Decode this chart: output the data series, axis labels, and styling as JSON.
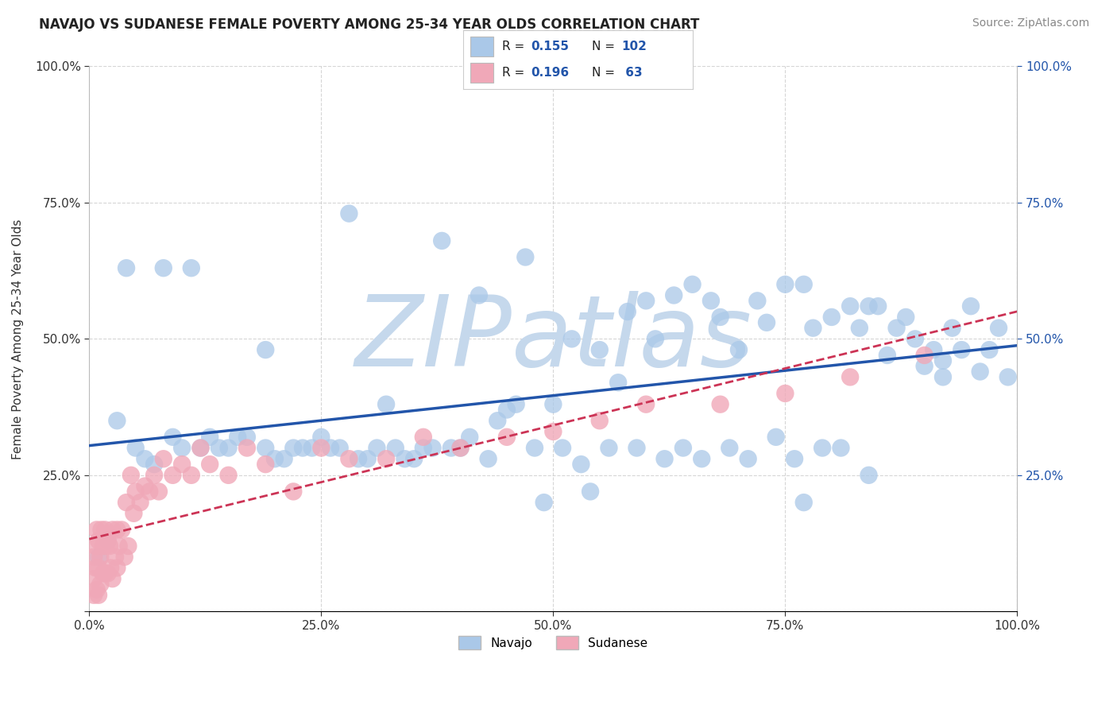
{
  "title": "NAVAJO VS SUDANESE FEMALE POVERTY AMONG 25-34 YEAR OLDS CORRELATION CHART",
  "source": "Source: ZipAtlas.com",
  "ylabel": "Female Poverty Among 25-34 Year Olds",
  "xlim": [
    0,
    1
  ],
  "ylim": [
    0,
    1
  ],
  "xticks": [
    0.0,
    0.25,
    0.5,
    0.75,
    1.0
  ],
  "yticks": [
    0.0,
    0.25,
    0.5,
    0.75,
    1.0
  ],
  "xticklabels": [
    "0.0%",
    "25.0%",
    "50.0%",
    "75.0%",
    "100.0%"
  ],
  "yticklabels": [
    "",
    "25.0%",
    "50.0%",
    "75.0%",
    "100.0%"
  ],
  "navajo_color": "#aac8e8",
  "sudanese_color": "#f0a8b8",
  "navajo_trend_color": "#2255aa",
  "sudanese_trend_color": "#cc3355",
  "background_color": "#ffffff",
  "grid_color": "#cccccc",
  "watermark": "ZIPatlas",
  "watermark_color": "#c5d8ec",
  "legend_navajo": "Navajo",
  "legend_sudanese": "Sudanese",
  "R_N_color": "#2255aa",
  "navajo_R_str": "0.155",
  "navajo_N_str": "102",
  "sudanese_R_str": "0.196",
  "sudanese_N_str": " 63",
  "navajo_x": [
    0.04,
    0.08,
    0.11,
    0.28,
    0.38,
    0.42,
    0.47,
    0.52,
    0.55,
    0.58,
    0.6,
    0.63,
    0.65,
    0.67,
    0.68,
    0.7,
    0.72,
    0.73,
    0.75,
    0.77,
    0.78,
    0.8,
    0.82,
    0.83,
    0.84,
    0.85,
    0.86,
    0.87,
    0.88,
    0.89,
    0.9,
    0.91,
    0.92,
    0.93,
    0.94,
    0.95,
    0.96,
    0.97,
    0.98,
    0.99,
    0.03,
    0.05,
    0.07,
    0.09,
    0.1,
    0.13,
    0.15,
    0.17,
    0.19,
    0.21,
    0.23,
    0.25,
    0.27,
    0.29,
    0.31,
    0.33,
    0.35,
    0.37,
    0.39,
    0.41,
    0.43,
    0.45,
    0.48,
    0.5,
    0.53,
    0.56,
    0.59,
    0.62,
    0.64,
    0.66,
    0.69,
    0.71,
    0.74,
    0.76,
    0.79,
    0.81,
    0.57,
    0.61,
    0.19,
    0.22,
    0.32,
    0.46,
    0.49,
    0.54,
    0.01,
    0.02,
    0.16,
    0.06,
    0.12,
    0.14,
    0.2,
    0.24,
    0.26,
    0.3,
    0.34,
    0.36,
    0.4,
    0.44,
    0.51,
    0.77,
    0.84,
    0.92
  ],
  "navajo_y": [
    0.63,
    0.63,
    0.63,
    0.73,
    0.68,
    0.58,
    0.65,
    0.5,
    0.48,
    0.55,
    0.57,
    0.58,
    0.6,
    0.57,
    0.54,
    0.48,
    0.57,
    0.53,
    0.6,
    0.6,
    0.52,
    0.54,
    0.56,
    0.52,
    0.56,
    0.56,
    0.47,
    0.52,
    0.54,
    0.5,
    0.45,
    0.48,
    0.46,
    0.52,
    0.48,
    0.56,
    0.44,
    0.48,
    0.52,
    0.43,
    0.35,
    0.3,
    0.27,
    0.32,
    0.3,
    0.32,
    0.3,
    0.32,
    0.3,
    0.28,
    0.3,
    0.32,
    0.3,
    0.28,
    0.3,
    0.3,
    0.28,
    0.3,
    0.3,
    0.32,
    0.28,
    0.37,
    0.3,
    0.38,
    0.27,
    0.3,
    0.3,
    0.28,
    0.3,
    0.28,
    0.3,
    0.28,
    0.32,
    0.28,
    0.3,
    0.3,
    0.42,
    0.5,
    0.48,
    0.3,
    0.38,
    0.38,
    0.2,
    0.22,
    0.1,
    0.13,
    0.32,
    0.28,
    0.3,
    0.3,
    0.28,
    0.3,
    0.3,
    0.28,
    0.28,
    0.3,
    0.3,
    0.35,
    0.3,
    0.2,
    0.25,
    0.43
  ],
  "sudanese_x": [
    0.005,
    0.005,
    0.005,
    0.007,
    0.007,
    0.008,
    0.008,
    0.01,
    0.01,
    0.01,
    0.012,
    0.012,
    0.013,
    0.015,
    0.015,
    0.017,
    0.017,
    0.018,
    0.02,
    0.02,
    0.022,
    0.023,
    0.025,
    0.025,
    0.028,
    0.03,
    0.03,
    0.032,
    0.035,
    0.038,
    0.04,
    0.042,
    0.045,
    0.048,
    0.05,
    0.055,
    0.06,
    0.065,
    0.07,
    0.075,
    0.08,
    0.09,
    0.1,
    0.11,
    0.12,
    0.13,
    0.15,
    0.17,
    0.19,
    0.22,
    0.25,
    0.28,
    0.32,
    0.36,
    0.4,
    0.45,
    0.5,
    0.55,
    0.6,
    0.68,
    0.75,
    0.82,
    0.9
  ],
  "sudanese_y": [
    0.1,
    0.06,
    0.03,
    0.12,
    0.08,
    0.15,
    0.04,
    0.13,
    0.08,
    0.03,
    0.1,
    0.05,
    0.15,
    0.12,
    0.07,
    0.15,
    0.07,
    0.12,
    0.13,
    0.07,
    0.12,
    0.08,
    0.15,
    0.06,
    0.1,
    0.15,
    0.08,
    0.12,
    0.15,
    0.1,
    0.2,
    0.12,
    0.25,
    0.18,
    0.22,
    0.2,
    0.23,
    0.22,
    0.25,
    0.22,
    0.28,
    0.25,
    0.27,
    0.25,
    0.3,
    0.27,
    0.25,
    0.3,
    0.27,
    0.22,
    0.3,
    0.28,
    0.28,
    0.32,
    0.3,
    0.32,
    0.33,
    0.35,
    0.38,
    0.38,
    0.4,
    0.43,
    0.47
  ]
}
